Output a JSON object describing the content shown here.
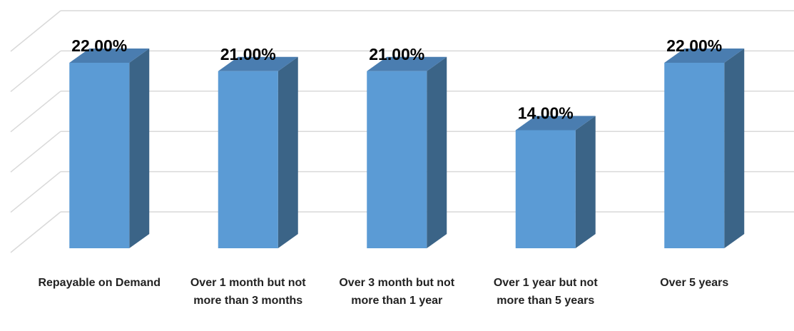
{
  "chart_data": {
    "type": "bar3d",
    "categories": [
      "Repayable on Demand",
      "Over 1 month but not more than 3 months",
      "Over 3 month but not more than 1 year",
      "Over 1 year but not more than 5 years",
      "Over 5 years"
    ],
    "values": [
      22,
      21,
      21,
      14,
      22
    ],
    "value_labels": [
      "22.00%",
      "21.00%",
      "21.00%",
      "14.00%",
      "22.00%"
    ],
    "color": "#5b9bd5",
    "ylim": [
      0,
      25
    ],
    "yticks": [
      0,
      5,
      10,
      15,
      20,
      25
    ],
    "grid": true
  }
}
